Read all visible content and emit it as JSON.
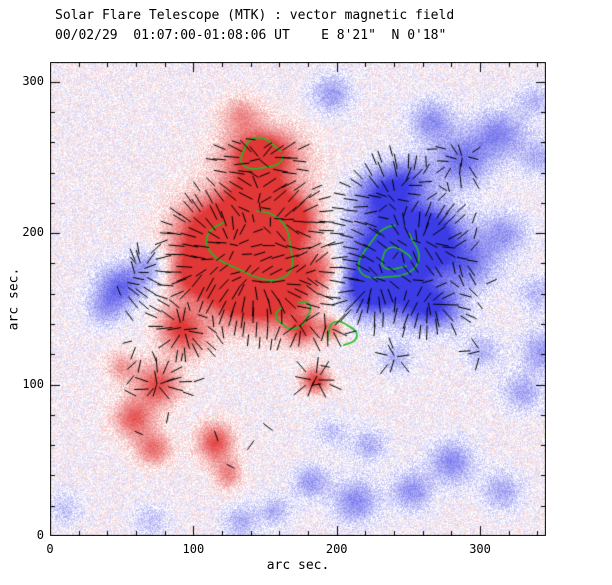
{
  "header": {
    "title": "Solar Flare Telescope (MTK) : vector magnetic field",
    "subtitle": "00/02/29  01:07:00-01:08:06 UT    E 8'21\"  N 0'18\""
  },
  "chart_data": {
    "type": "heatmap",
    "title": "Solar Flare Telescope (MTK) : vector magnetic field",
    "subtitle": "00/02/29  01:07:00-01:08:06 UT    E 8'21\"  N 0'18\"",
    "xlabel": "arc sec.",
    "ylabel": "arc sec.",
    "xlim": [
      0,
      346
    ],
    "ylim": [
      0,
      313
    ],
    "xticks": [
      0,
      100,
      200,
      300
    ],
    "yticks": [
      0,
      100,
      200,
      300
    ],
    "xtick_labels": [
      "0",
      "100",
      "200",
      "300"
    ],
    "ytick_labels": [
      "0",
      "100",
      "200",
      "300"
    ],
    "minor_tick_step": 20,
    "grid": false,
    "colors": {
      "positive": "#e13737",
      "negative": "#3c3ce6",
      "contour": "#22bb22",
      "vectors": "#000000",
      "frame": "#000000",
      "background": "#ffffff"
    },
    "notes": "red blobs = positive longitudinal field, blue blobs = negative field, short black segments = transverse field vectors over active region, green curves = contours, speckled red/blue background noise",
    "noise": {
      "amplitude": 0.5,
      "seed": 7
    },
    "blobs": [
      [
        140,
        190,
        26,
        22,
        1.3
      ],
      [
        115,
        200,
        20,
        16,
        1.0
      ],
      [
        160,
        160,
        18,
        16,
        1.0
      ],
      [
        130,
        160,
        16,
        14,
        0.9
      ],
      [
        100,
        172,
        14,
        12,
        0.8
      ],
      [
        168,
        210,
        13,
        11,
        0.9
      ],
      [
        145,
        226,
        13,
        11,
        1.0
      ],
      [
        147,
        253,
        16,
        11,
        1.05
      ],
      [
        150,
        245,
        28,
        18,
        0.3
      ],
      [
        133,
        279,
        10,
        8,
        0.5
      ],
      [
        95,
        132,
        12,
        10,
        0.7
      ],
      [
        88,
        142,
        10,
        9,
        0.5
      ],
      [
        75,
        100,
        11,
        10,
        0.9
      ],
      [
        58,
        78,
        10,
        9,
        0.8
      ],
      [
        72,
        58,
        9,
        8,
        0.7
      ],
      [
        50,
        112,
        8,
        7,
        0.5
      ],
      [
        115,
        62,
        9,
        9,
        0.9
      ],
      [
        124,
        41,
        7,
        7,
        0.6
      ],
      [
        185,
        103,
        7,
        6,
        1.0
      ],
      [
        196,
        137,
        6,
        5,
        0.7
      ],
      [
        176,
        136,
        8,
        7,
        0.75
      ],
      [
        190,
        176,
        10,
        11,
        0.6
      ],
      [
        238,
        186,
        24,
        20,
        -1.3
      ],
      [
        265,
        200,
        16,
        14,
        -0.9
      ],
      [
        222,
        162,
        14,
        12,
        -0.9
      ],
      [
        258,
        153,
        13,
        11,
        -0.7
      ],
      [
        275,
        150,
        12,
        10,
        -0.5
      ],
      [
        292,
        180,
        14,
        12,
        -0.6
      ],
      [
        316,
        200,
        12,
        10,
        -0.5
      ],
      [
        231,
        226,
        14,
        12,
        -0.8
      ],
      [
        250,
        236,
        12,
        10,
        -0.6
      ],
      [
        287,
        248,
        14,
        12,
        -0.7
      ],
      [
        313,
        266,
        13,
        11,
        -0.6
      ],
      [
        266,
        274,
        11,
        10,
        -0.55
      ],
      [
        338,
        288,
        9,
        8,
        -0.35
      ],
      [
        341,
        250,
        10,
        9,
        -0.4
      ],
      [
        196,
        292,
        10,
        9,
        -0.5
      ],
      [
        49,
        165,
        12,
        10,
        -0.75
      ],
      [
        70,
        178,
        10,
        9,
        -0.5
      ],
      [
        38,
        150,
        9,
        8,
        -0.4
      ],
      [
        343,
        122,
        11,
        10,
        -0.5
      ],
      [
        329,
        95,
        10,
        9,
        -0.45
      ],
      [
        301,
        122,
        9,
        8,
        -0.4
      ],
      [
        340,
        160,
        10,
        9,
        -0.35
      ],
      [
        213,
        23,
        11,
        10,
        -0.6
      ],
      [
        182,
        36,
        9,
        8,
        -0.5
      ],
      [
        222,
        60,
        9,
        8,
        -0.4
      ],
      [
        252,
        30,
        10,
        9,
        -0.55
      ],
      [
        280,
        49,
        11,
        10,
        -0.6
      ],
      [
        315,
        30,
        10,
        9,
        -0.45
      ],
      [
        133,
        10,
        9,
        8,
        -0.4
      ],
      [
        70,
        10,
        9,
        8,
        -0.3
      ],
      [
        10,
        18,
        8,
        8,
        -0.3
      ],
      [
        157,
        17,
        8,
        7,
        -0.4
      ],
      [
        241,
        118,
        8,
        7,
        -0.4
      ],
      [
        196,
        69,
        8,
        7,
        -0.3
      ]
    ],
    "contours": [
      {
        "cx": 142,
        "cy": 192,
        "rx": 30,
        "ry": 21,
        "rot": -15,
        "a0": 150,
        "a1": 460
      },
      {
        "cx": 147,
        "cy": 252,
        "rx": 14,
        "ry": 10,
        "rot": 0,
        "a0": 10,
        "a1": 360
      },
      {
        "cx": 237,
        "cy": 186,
        "rx": 21,
        "ry": 16,
        "rot": 25,
        "a0": 60,
        "a1": 390
      },
      {
        "cx": 241,
        "cy": 183,
        "rx": 10,
        "ry": 7,
        "rot": 0,
        "a0": 0,
        "a1": 320
      },
      {
        "cx": 203,
        "cy": 133,
        "rx": 10,
        "ry": 8,
        "rot": 0,
        "a0": -80,
        "a1": 210
      },
      {
        "cx": 170,
        "cy": 146,
        "rx": 12,
        "ry": 8,
        "rot": 20,
        "a0": 120,
        "a1": 420
      }
    ],
    "vector_field": {
      "x0": 56,
      "x1": 296,
      "y0": 96,
      "y1": 258,
      "step": 8,
      "jitter": 2.5,
      "field_threshold": 0.28,
      "grad_threshold": 0.02,
      "min_len": 8,
      "max_len": 16,
      "extras": [
        [
          70,
          95
        ],
        [
          82,
          78
        ],
        [
          62,
          68
        ],
        [
          92,
          118
        ],
        [
          104,
          103
        ],
        [
          54,
          128
        ],
        [
          116,
          66
        ],
        [
          126,
          46
        ],
        [
          300,
          152
        ],
        [
          308,
          168
        ],
        [
          186,
          100
        ],
        [
          192,
          112
        ],
        [
          48,
          162
        ],
        [
          58,
          182
        ],
        [
          140,
          60
        ],
        [
          152,
          72
        ],
        [
          140,
          262
        ],
        [
          152,
          258
        ],
        [
          130,
          260
        ]
      ]
    }
  }
}
